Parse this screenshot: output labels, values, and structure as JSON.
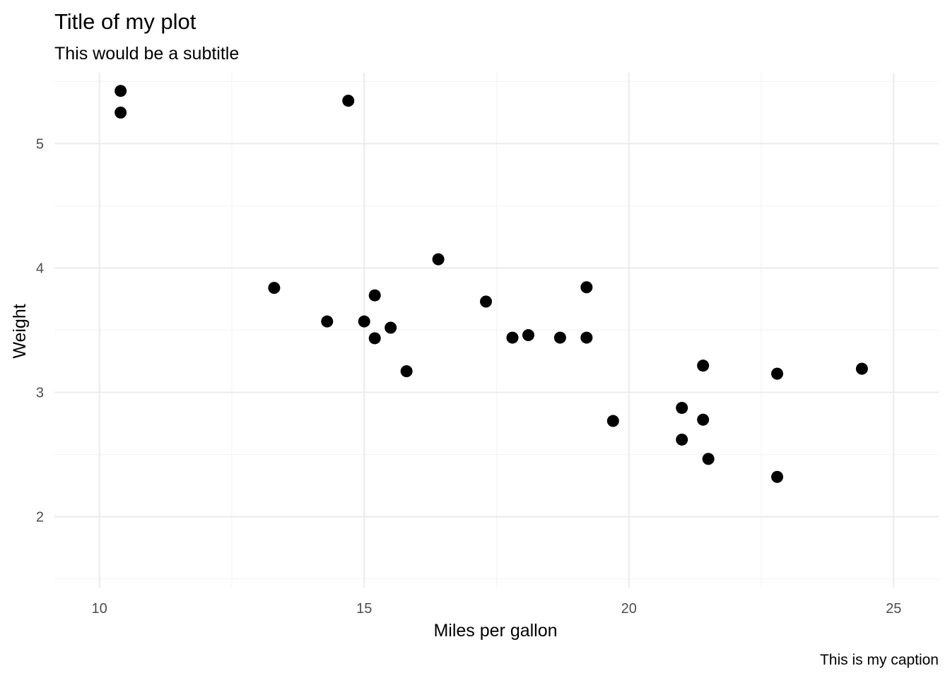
{
  "chart_data": {
    "type": "scatter",
    "title": "Title of my plot",
    "subtitle": "This would be a subtitle",
    "xlabel": "Miles per gallon",
    "ylabel": "Weight",
    "caption": "This is my caption",
    "xlim": [
      9.15,
      25.85
    ],
    "ylim": [
      1.43,
      5.57
    ],
    "x_ticks": [
      10,
      15,
      20,
      25
    ],
    "x_tick_labels": [
      "10",
      "15",
      "20",
      "25"
    ],
    "x_minor_ticks": [
      12.5,
      17.5,
      22.5
    ],
    "y_ticks": [
      2,
      3,
      4,
      5
    ],
    "y_tick_labels": [
      "2",
      "3",
      "4",
      "5"
    ],
    "y_minor_ticks": [
      1.5,
      2.5,
      3.5,
      4.5,
      5.5
    ],
    "grid": true,
    "point_color": "#000000",
    "points": [
      {
        "x": 10.4,
        "y": 5.424
      },
      {
        "x": 10.4,
        "y": 5.25
      },
      {
        "x": 14.7,
        "y": 5.345
      },
      {
        "x": 13.3,
        "y": 3.84
      },
      {
        "x": 14.3,
        "y": 3.57
      },
      {
        "x": 15.0,
        "y": 3.57
      },
      {
        "x": 15.2,
        "y": 3.78
      },
      {
        "x": 15.2,
        "y": 3.435
      },
      {
        "x": 15.5,
        "y": 3.52
      },
      {
        "x": 15.8,
        "y": 3.17
      },
      {
        "x": 16.4,
        "y": 4.07
      },
      {
        "x": 17.3,
        "y": 3.73
      },
      {
        "x": 17.8,
        "y": 3.44
      },
      {
        "x": 18.1,
        "y": 3.46
      },
      {
        "x": 18.7,
        "y": 3.44
      },
      {
        "x": 19.2,
        "y": 3.44
      },
      {
        "x": 19.2,
        "y": 3.845
      },
      {
        "x": 19.7,
        "y": 2.77
      },
      {
        "x": 21.0,
        "y": 2.62
      },
      {
        "x": 21.0,
        "y": 2.875
      },
      {
        "x": 21.4,
        "y": 3.215
      },
      {
        "x": 21.4,
        "y": 2.78
      },
      {
        "x": 21.5,
        "y": 2.465
      },
      {
        "x": 22.8,
        "y": 2.32
      },
      {
        "x": 22.8,
        "y": 3.15
      },
      {
        "x": 24.4,
        "y": 3.19
      }
    ]
  }
}
